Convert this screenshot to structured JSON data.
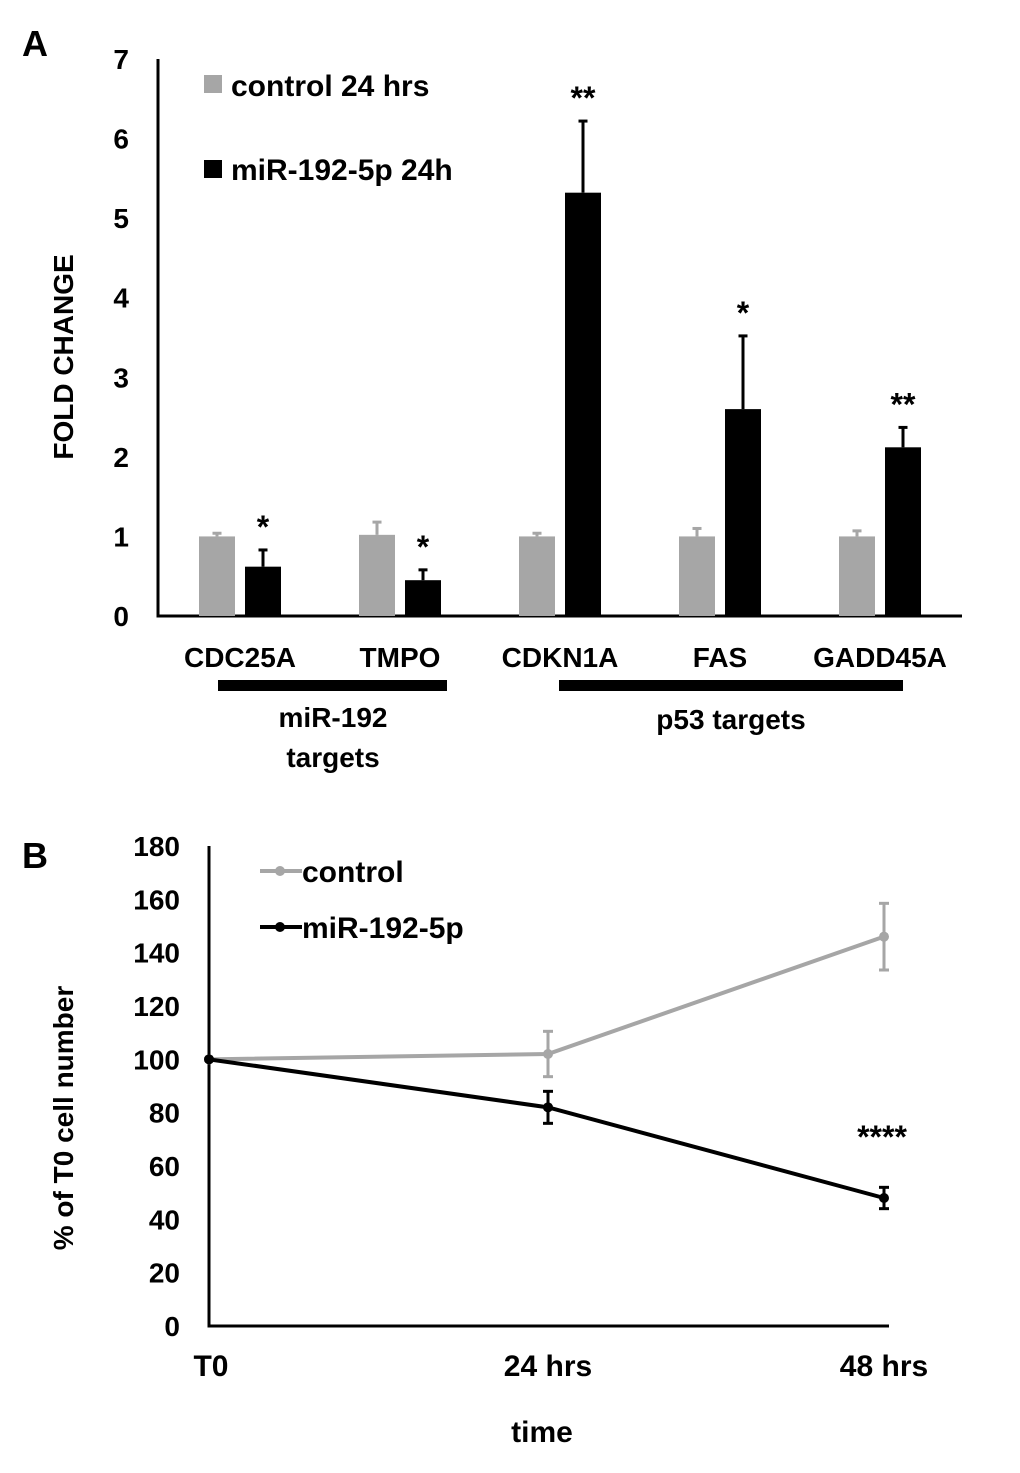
{
  "colors": {
    "control": "#a6a6a6",
    "treated": "#000000",
    "axis": "#000000"
  },
  "chart_data": [
    {
      "panel_label": "A",
      "type": "bar",
      "ylabel": "FOLD CHANGE",
      "ylim": [
        0,
        7
      ],
      "yticks": [
        "0",
        "1",
        "2",
        "3",
        "4",
        "5",
        "6",
        "7"
      ],
      "categories": [
        "CDC25A",
        "TMPO",
        "CDKN1A",
        "FAS",
        "GADD45A"
      ],
      "series": [
        {
          "name": "control 24 hrs",
          "values": [
            1.0,
            1.02,
            1.0,
            1.0,
            1.0
          ],
          "errors": [
            0.04,
            0.16,
            0.04,
            0.1,
            0.07
          ]
        },
        {
          "name": "miR-192-5p 24h",
          "values": [
            0.62,
            0.45,
            5.32,
            2.6,
            2.12
          ],
          "errors": [
            0.21,
            0.13,
            0.9,
            0.92,
            0.25
          ]
        }
      ],
      "significance": [
        "*",
        "*",
        "**",
        "*",
        "**"
      ],
      "groups": [
        {
          "label_line1": "miR-192",
          "label_line2": "targets",
          "categories": [
            0,
            1
          ]
        },
        {
          "label_line1": "p53 targets",
          "label_line2": "",
          "categories": [
            2,
            4
          ]
        }
      ]
    },
    {
      "panel_label": "B",
      "type": "line",
      "ylabel": "% of T0 cell number",
      "xlabel": "time",
      "ylim": [
        0,
        180
      ],
      "yticks": [
        "0",
        "20",
        "40",
        "60",
        "80",
        "100",
        "120",
        "140",
        "160",
        "180"
      ],
      "x": [
        "T0",
        "24 hrs",
        "48 hrs"
      ],
      "series": [
        {
          "name": "control",
          "values": [
            100,
            102,
            146
          ],
          "errors": [
            0,
            8.5,
            12.5
          ]
        },
        {
          "name": "miR-192-5p",
          "values": [
            100,
            82,
            48
          ],
          "errors": [
            0,
            6,
            4
          ]
        }
      ],
      "annotation": "****"
    }
  ]
}
